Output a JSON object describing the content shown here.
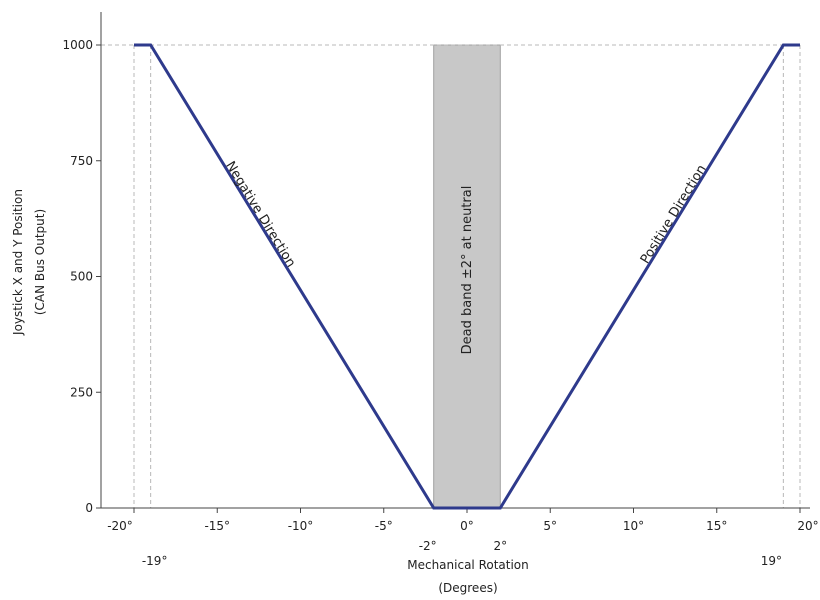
{
  "chart_data": {
    "type": "line",
    "title": "",
    "xlabel": [
      "Mechanical Rotation",
      "(Degrees)"
    ],
    "ylabel": [
      "Joystick X and Y Position",
      "(CAN Bus Output)"
    ],
    "xlim": [
      -20,
      20
    ],
    "ylim": [
      0,
      1000
    ],
    "yticks": [
      0,
      250,
      500,
      750,
      1000
    ],
    "xticks_upper": [
      {
        "value": -20,
        "label": "-20°"
      },
      {
        "value": -15,
        "label": "-15°"
      },
      {
        "value": -10,
        "label": "-10°"
      },
      {
        "value": -5,
        "label": "-5°"
      },
      {
        "value": 0,
        "label": "0°"
      },
      {
        "value": 5,
        "label": "5°"
      },
      {
        "value": 10,
        "label": "10°"
      },
      {
        "value": 15,
        "label": "15°"
      },
      {
        "value": 20,
        "label": "20°"
      }
    ],
    "xticks_lower": [
      {
        "value": -19,
        "label": "-19°"
      },
      {
        "value": -2,
        "label": "-2°"
      },
      {
        "value": 2,
        "label": "2°"
      },
      {
        "value": 19,
        "label": "19°"
      }
    ],
    "series": [
      {
        "color": "#2e3a8c",
        "x": [
          -20,
          -19,
          -2,
          2,
          19,
          20
        ],
        "y": [
          1000,
          1000,
          0,
          0,
          1000,
          1000
        ]
      }
    ],
    "dead_band": {
      "from": -2,
      "to": 2,
      "color": "#c8c8c8",
      "label": "Dead band ±2° at neutral"
    },
    "reference_lines": {
      "y": 1000,
      "x": [
        -20,
        -19,
        19,
        20
      ]
    },
    "annotations": [
      {
        "text": "Negative Direction",
        "x": -12.6,
        "y": 630
      },
      {
        "text": "Positive Direction",
        "x": 12.6,
        "y": 630
      }
    ],
    "grid": false
  }
}
